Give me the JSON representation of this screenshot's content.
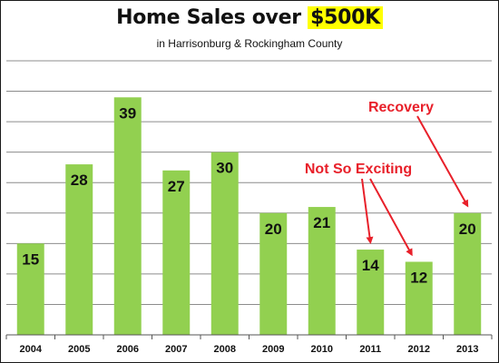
{
  "chart_data": {
    "type": "bar",
    "title_prefix": "Home Sales over ",
    "title_highlight": "$500K",
    "subtitle": "in Harrisonburg & Rockingham County",
    "categories": [
      "2004",
      "2005",
      "2006",
      "2007",
      "2008",
      "2009",
      "2010",
      "2011",
      "2012",
      "2013"
    ],
    "values": [
      15,
      28,
      39,
      27,
      30,
      20,
      21,
      14,
      12,
      20
    ],
    "ylim": [
      0,
      45
    ],
    "grid": true,
    "bar_color": "#92d050",
    "highlight_color": "#ffff00",
    "annotation_color": "#e8202a",
    "annotations": [
      {
        "text": "Recovery",
        "targets": [
          "2013"
        ]
      },
      {
        "text": "Not So Exciting",
        "targets": [
          "2011",
          "2012"
        ]
      }
    ]
  }
}
